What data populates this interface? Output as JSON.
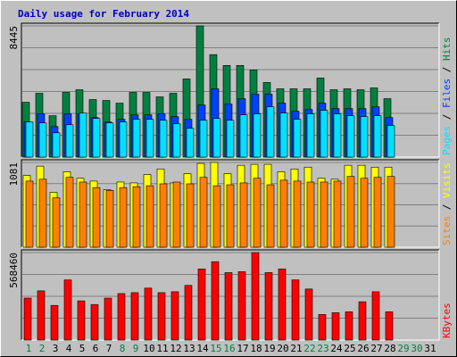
{
  "chart_data": [
    {
      "type": "bar",
      "title": "Daily usage for February 2014",
      "legend_separator": " / ",
      "ylim": [
        0,
        8445
      ],
      "yticks": [
        8445
      ],
      "grid": true,
      "series": [
        {
          "name": "Hits",
          "color": "#008040",
          "values": [
            3528,
            4107,
            2661,
            4165,
            4338,
            3702,
            3644,
            3471,
            4165,
            4165,
            3875,
            4107,
            5032,
            8445,
            6594,
            5900,
            5900,
            5611,
            4801,
            4396,
            4396,
            4396,
            5090,
            4338,
            4396,
            4338,
            4454,
            3760,
            null,
            null,
            null
          ]
        },
        {
          "name": "Files",
          "color": "#0040ff",
          "values": [
            2256,
            2776,
            1967,
            2776,
            2776,
            2545,
            2256,
            2429,
            2718,
            2718,
            2776,
            2603,
            2429,
            3355,
            4396,
            3413,
            3760,
            4049,
            4049,
            3470,
            2950,
            3066,
            3470,
            3123,
            3123,
            3123,
            3239,
            2545,
            null,
            null,
            null
          ]
        },
        {
          "name": "Pages",
          "color": "#00e0ff",
          "values": [
            2256,
            2198,
            1562,
            2082,
            2834,
            2487,
            2198,
            2256,
            2429,
            2429,
            2371,
            2140,
            1851,
            2371,
            2487,
            2371,
            2718,
            2776,
            3239,
            2834,
            2429,
            2776,
            3008,
            2776,
            2661,
            2603,
            2661,
            2024,
            null,
            null,
            null
          ]
        }
      ]
    },
    {
      "type": "bar",
      "legend_separator": " / ",
      "ylim": [
        0,
        1081
      ],
      "yticks": [
        1081
      ],
      "grid": true,
      "series": [
        {
          "name": "Visits",
          "color": "#ffff00",
          "values": [
            915,
            1034,
            701,
            962,
            879,
            843,
            736,
            831,
            820,
            927,
            998,
            820,
            938,
            1069,
            1081,
            938,
            1045,
            1057,
            1057,
            962,
            998,
            1021,
            879,
            867,
            1045,
            1045,
            1021,
            1021,
            null,
            null,
            null
          ]
        },
        {
          "name": "Sites",
          "color": "#ff8000",
          "values": [
            843,
            867,
            630,
            891,
            831,
            760,
            725,
            760,
            772,
            784,
            808,
            831,
            808,
            891,
            784,
            796,
            820,
            879,
            796,
            855,
            843,
            831,
            831,
            843,
            903,
            879,
            891,
            903,
            null,
            null,
            null
          ]
        }
      ]
    },
    {
      "type": "bar",
      "ylim": [
        0,
        568460
      ],
      "yticks": [
        568460
      ],
      "grid": true,
      "categories": [
        "1",
        "2",
        "3",
        "4",
        "5",
        "6",
        "7",
        "8",
        "9",
        "10",
        "11",
        "12",
        "13",
        "14",
        "15",
        "16",
        "17",
        "18",
        "19",
        "20",
        "21",
        "22",
        "23",
        "24",
        "25",
        "26",
        "27",
        "28",
        "29",
        "30",
        "31"
      ],
      "category_colors": [
        "#008040",
        "#008040",
        "#000000",
        "#000000",
        "#000000",
        "#000000",
        "#000000",
        "#008040",
        "#008040",
        "#000000",
        "#000000",
        "#000000",
        "#000000",
        "#000000",
        "#008040",
        "#008040",
        "#000000",
        "#000000",
        "#000000",
        "#000000",
        "#000000",
        "#008040",
        "#008040",
        "#000000",
        "#000000",
        "#000000",
        "#000000",
        "#000000",
        "#008040",
        "#008040",
        "#000000"
      ],
      "series": [
        {
          "name": "KBytes",
          "color": "#ff0000",
          "values": [
            272389,
            319761,
            225017,
            390819,
            254624,
            230938,
            272389,
            301997,
            307918,
            337526,
            307918,
            313840,
            355290,
            461877,
            509249,
            438191,
            444112,
            568460,
            438191,
            461877,
            390819,
            331604,
            165802,
            177645,
            183567,
            248703,
            313840,
            183567,
            null,
            null,
            null
          ]
        }
      ]
    }
  ]
}
